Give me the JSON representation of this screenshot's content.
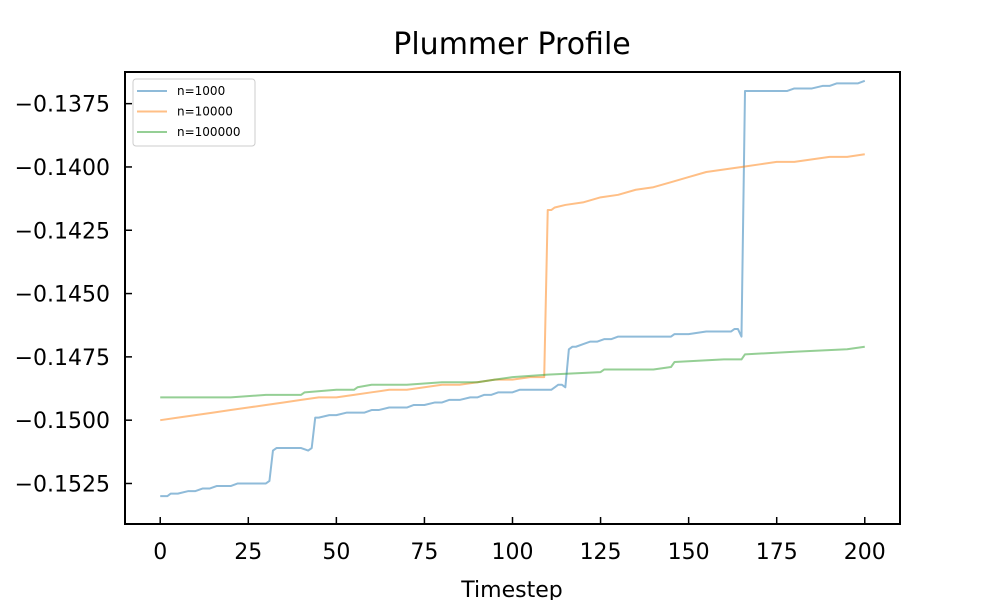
{
  "chart_data": {
    "type": "line",
    "title": "Plummer Profile",
    "xlabel": "Timestep",
    "ylabel": "",
    "xlim": [
      -10,
      210
    ],
    "ylim": [
      -0.1541,
      -0.13625
    ],
    "xticks": [
      0,
      25,
      50,
      75,
      100,
      125,
      150,
      175,
      200
    ],
    "xtick_labels": [
      "0",
      "25",
      "50",
      "75",
      "100",
      "125",
      "150",
      "175",
      "200"
    ],
    "yticks": [
      -0.1525,
      -0.15,
      -0.1475,
      -0.145,
      -0.1425,
      -0.14,
      -0.1375
    ],
    "ytick_labels": [
      "−0.1525",
      "−0.1500",
      "−0.1475",
      "−0.1450",
      "−0.1425",
      "−0.1400",
      "−0.1375"
    ],
    "legend_position": "top-left",
    "grid": false,
    "series": [
      {
        "name": "n=1000",
        "color": "#1f77b4",
        "x": [
          0,
          2,
          3,
          5,
          8,
          10,
          12,
          14,
          16,
          18,
          20,
          22,
          25,
          28,
          30,
          31,
          32,
          33,
          35,
          38,
          40,
          42,
          43,
          44,
          45,
          48,
          50,
          53,
          55,
          58,
          60,
          62,
          65,
          68,
          70,
          72,
          75,
          78,
          80,
          82,
          85,
          88,
          90,
          92,
          94,
          96,
          98,
          100,
          102,
          104,
          106,
          108,
          110,
          111,
          112,
          113,
          114,
          115,
          116,
          117,
          118,
          120,
          122,
          124,
          126,
          128,
          130,
          135,
          140,
          144,
          145,
          146,
          150,
          155,
          160,
          162,
          163,
          164,
          165,
          166,
          168,
          170,
          172,
          175,
          178,
          180,
          185,
          188,
          190,
          192,
          195,
          198,
          200
        ],
        "y": [
          -0.153,
          -0.153,
          -0.1529,
          -0.1529,
          -0.1528,
          -0.1528,
          -0.1527,
          -0.1527,
          -0.1526,
          -0.1526,
          -0.1526,
          -0.1525,
          -0.1525,
          -0.1525,
          -0.1525,
          -0.1524,
          -0.1512,
          -0.1511,
          -0.1511,
          -0.1511,
          -0.1511,
          -0.1512,
          -0.1511,
          -0.1499,
          -0.1499,
          -0.1498,
          -0.1498,
          -0.1497,
          -0.1497,
          -0.1497,
          -0.1496,
          -0.1496,
          -0.1495,
          -0.1495,
          -0.1495,
          -0.1494,
          -0.1494,
          -0.1493,
          -0.1493,
          -0.1492,
          -0.1492,
          -0.1491,
          -0.1491,
          -0.149,
          -0.149,
          -0.1489,
          -0.1489,
          -0.1489,
          -0.1488,
          -0.1488,
          -0.1488,
          -0.1488,
          -0.1488,
          -0.1488,
          -0.1487,
          -0.1486,
          -0.1486,
          -0.1487,
          -0.1472,
          -0.1471,
          -0.1471,
          -0.147,
          -0.1469,
          -0.1469,
          -0.1468,
          -0.1468,
          -0.1467,
          -0.1467,
          -0.1467,
          -0.1467,
          -0.1467,
          -0.1466,
          -0.1466,
          -0.1465,
          -0.1465,
          -0.1465,
          -0.1464,
          -0.1464,
          -0.1467,
          -0.137,
          -0.137,
          -0.137,
          -0.137,
          -0.137,
          -0.137,
          -0.1369,
          -0.1369,
          -0.1368,
          -0.1368,
          -0.1367,
          -0.1367,
          -0.1367,
          -0.1366
        ]
      },
      {
        "name": "n=10000",
        "color": "#ff7f0e",
        "x": [
          0,
          5,
          10,
          15,
          20,
          25,
          30,
          35,
          40,
          45,
          50,
          55,
          60,
          65,
          70,
          75,
          80,
          85,
          90,
          95,
          100,
          105,
          109,
          110,
          111,
          112,
          115,
          120,
          125,
          130,
          135,
          140,
          145,
          150,
          155,
          160,
          165,
          170,
          175,
          180,
          185,
          190,
          195,
          200
        ],
        "y": [
          -0.15,
          -0.1499,
          -0.1498,
          -0.1497,
          -0.1496,
          -0.1495,
          -0.1494,
          -0.1493,
          -0.1492,
          -0.1491,
          -0.1491,
          -0.149,
          -0.1489,
          -0.1488,
          -0.1488,
          -0.1487,
          -0.1486,
          -0.1486,
          -0.1485,
          -0.1484,
          -0.1484,
          -0.1483,
          -0.1483,
          -0.1417,
          -0.1417,
          -0.1416,
          -0.1415,
          -0.1414,
          -0.1412,
          -0.1411,
          -0.1409,
          -0.1408,
          -0.1406,
          -0.1404,
          -0.1402,
          -0.1401,
          -0.14,
          -0.1399,
          -0.1398,
          -0.1398,
          -0.1397,
          -0.1396,
          -0.1396,
          -0.1395
        ]
      },
      {
        "name": "n=100000",
        "color": "#2ca02c",
        "x": [
          0,
          10,
          20,
          30,
          40,
          41,
          50,
          55,
          56,
          60,
          70,
          80,
          90,
          95,
          100,
          110,
          125,
          126,
          140,
          145,
          146,
          160,
          165,
          166,
          180,
          195,
          200
        ],
        "y": [
          -0.1491,
          -0.1491,
          -0.1491,
          -0.149,
          -0.149,
          -0.1489,
          -0.1488,
          -0.1488,
          -0.1487,
          -0.1486,
          -0.1486,
          -0.1485,
          -0.1485,
          -0.1484,
          -0.1483,
          -0.1482,
          -0.1481,
          -0.148,
          -0.148,
          -0.1479,
          -0.1477,
          -0.1476,
          -0.1476,
          -0.1474,
          -0.1473,
          -0.1472,
          -0.1471
        ]
      }
    ]
  }
}
